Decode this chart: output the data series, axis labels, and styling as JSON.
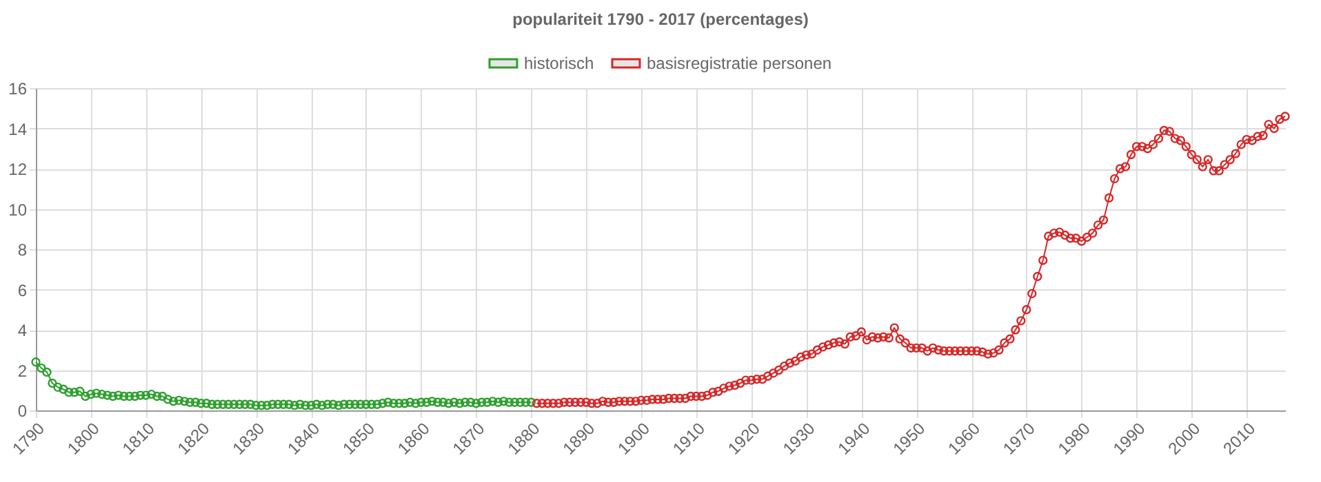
{
  "chart_data": {
    "type": "line",
    "title": "populariteit 1790 - 2017 (percentages)",
    "xlim": [
      1790,
      2017
    ],
    "xticks": [
      1790,
      1800,
      1810,
      1820,
      1830,
      1840,
      1850,
      1860,
      1870,
      1880,
      1890,
      1900,
      1910,
      1920,
      1930,
      1940,
      1950,
      1960,
      1970,
      1980,
      1990,
      2000,
      2010
    ],
    "ylim": [
      0,
      16
    ],
    "yticks": [
      0,
      2,
      4,
      6,
      8,
      10,
      12,
      14,
      16
    ],
    "grid": true,
    "legend": "top",
    "marker": "circle",
    "line_style": "solid",
    "series": [
      {
        "name": "historisch",
        "color": "#2ca02c",
        "x": [
          1790,
          1791,
          1792,
          1793,
          1794,
          1795,
          1796,
          1797,
          1798,
          1799,
          1800,
          1801,
          1802,
          1803,
          1804,
          1805,
          1806,
          1807,
          1808,
          1809,
          1810,
          1811,
          1812,
          1813,
          1814,
          1815,
          1816,
          1817,
          1818,
          1819,
          1820,
          1821,
          1822,
          1823,
          1824,
          1825,
          1826,
          1827,
          1828,
          1829,
          1830,
          1831,
          1832,
          1833,
          1834,
          1835,
          1836,
          1837,
          1838,
          1839,
          1840,
          1841,
          1842,
          1843,
          1844,
          1845,
          1846,
          1847,
          1848,
          1849,
          1850,
          1851,
          1852,
          1853,
          1854,
          1855,
          1856,
          1857,
          1858,
          1859,
          1860,
          1861,
          1862,
          1863,
          1864,
          1865,
          1866,
          1867,
          1868,
          1869,
          1870,
          1871,
          1872,
          1873,
          1874,
          1875,
          1876,
          1877,
          1878,
          1879,
          1880
        ],
        "values": [
          2.4,
          2.1,
          1.9,
          1.35,
          1.15,
          1.05,
          0.9,
          0.9,
          0.95,
          0.7,
          0.8,
          0.85,
          0.8,
          0.75,
          0.7,
          0.75,
          0.7,
          0.7,
          0.7,
          0.75,
          0.75,
          0.8,
          0.7,
          0.7,
          0.55,
          0.45,
          0.5,
          0.45,
          0.4,
          0.4,
          0.35,
          0.35,
          0.3,
          0.3,
          0.3,
          0.3,
          0.3,
          0.3,
          0.3,
          0.3,
          0.25,
          0.25,
          0.25,
          0.3,
          0.3,
          0.3,
          0.3,
          0.25,
          0.3,
          0.25,
          0.25,
          0.3,
          0.25,
          0.3,
          0.3,
          0.25,
          0.3,
          0.3,
          0.3,
          0.3,
          0.3,
          0.3,
          0.3,
          0.35,
          0.4,
          0.35,
          0.35,
          0.35,
          0.4,
          0.35,
          0.4,
          0.4,
          0.45,
          0.4,
          0.4,
          0.35,
          0.4,
          0.35,
          0.4,
          0.4,
          0.35,
          0.4,
          0.4,
          0.45,
          0.4,
          0.45,
          0.4,
          0.4,
          0.4,
          0.4,
          0.4
        ]
      },
      {
        "name": "basisregistratie personen",
        "color": "#d62728",
        "x": [
          1881,
          1882,
          1883,
          1884,
          1885,
          1886,
          1887,
          1888,
          1889,
          1890,
          1891,
          1892,
          1893,
          1894,
          1895,
          1896,
          1897,
          1898,
          1899,
          1900,
          1901,
          1902,
          1903,
          1904,
          1905,
          1906,
          1907,
          1908,
          1909,
          1910,
          1911,
          1912,
          1913,
          1914,
          1915,
          1916,
          1917,
          1918,
          1919,
          1920,
          1921,
          1922,
          1923,
          1924,
          1925,
          1926,
          1927,
          1928,
          1929,
          1930,
          1931,
          1932,
          1933,
          1934,
          1935,
          1936,
          1937,
          1938,
          1939,
          1940,
          1941,
          1942,
          1943,
          1944,
          1945,
          1946,
          1947,
          1948,
          1949,
          1950,
          1951,
          1952,
          1953,
          1954,
          1955,
          1956,
          1957,
          1958,
          1959,
          1960,
          1961,
          1962,
          1963,
          1964,
          1965,
          1966,
          1967,
          1968,
          1969,
          1970,
          1971,
          1972,
          1973,
          1974,
          1975,
          1976,
          1977,
          1978,
          1979,
          1980,
          1981,
          1982,
          1983,
          1984,
          1985,
          1986,
          1987,
          1988,
          1989,
          1990,
          1991,
          1992,
          1993,
          1994,
          1995,
          1996,
          1997,
          1998,
          1999,
          2000,
          2001,
          2002,
          2003,
          2004,
          2005,
          2006,
          2007,
          2008,
          2009,
          2010,
          2011,
          2012,
          2013,
          2014,
          2015,
          2016,
          2017
        ],
        "values": [
          0.35,
          0.35,
          0.35,
          0.35,
          0.35,
          0.4,
          0.4,
          0.4,
          0.4,
          0.4,
          0.35,
          0.35,
          0.45,
          0.4,
          0.4,
          0.45,
          0.45,
          0.45,
          0.45,
          0.5,
          0.5,
          0.55,
          0.55,
          0.55,
          0.6,
          0.6,
          0.6,
          0.6,
          0.7,
          0.7,
          0.7,
          0.75,
          0.9,
          0.95,
          1.1,
          1.2,
          1.25,
          1.35,
          1.5,
          1.5,
          1.55,
          1.55,
          1.7,
          1.85,
          2.0,
          2.2,
          2.35,
          2.45,
          2.65,
          2.75,
          2.8,
          3.0,
          3.15,
          3.25,
          3.35,
          3.4,
          3.3,
          3.65,
          3.7,
          3.9,
          3.5,
          3.65,
          3.6,
          3.65,
          3.6,
          4.1,
          3.55,
          3.35,
          3.1,
          3.1,
          3.1,
          2.95,
          3.1,
          3.0,
          2.95,
          2.95,
          2.95,
          2.95,
          2.95,
          2.95,
          2.95,
          2.9,
          2.8,
          2.85,
          3.0,
          3.35,
          3.55,
          4.0,
          4.45,
          5.0,
          5.8,
          6.65,
          7.45,
          8.65,
          8.8,
          8.85,
          8.7,
          8.55,
          8.55,
          8.4,
          8.6,
          8.8,
          9.2,
          9.45,
          10.55,
          11.5,
          12.0,
          12.1,
          12.7,
          13.1,
          13.1,
          13.0,
          13.2,
          13.5,
          13.9,
          13.85,
          13.5,
          13.4,
          13.1,
          12.7,
          12.45,
          12.1,
          12.45,
          11.9,
          11.9,
          12.2,
          12.45,
          12.75,
          13.2,
          13.45,
          13.4,
          13.6,
          13.65,
          14.2,
          14.0,
          14.45,
          14.6
        ]
      }
    ]
  }
}
